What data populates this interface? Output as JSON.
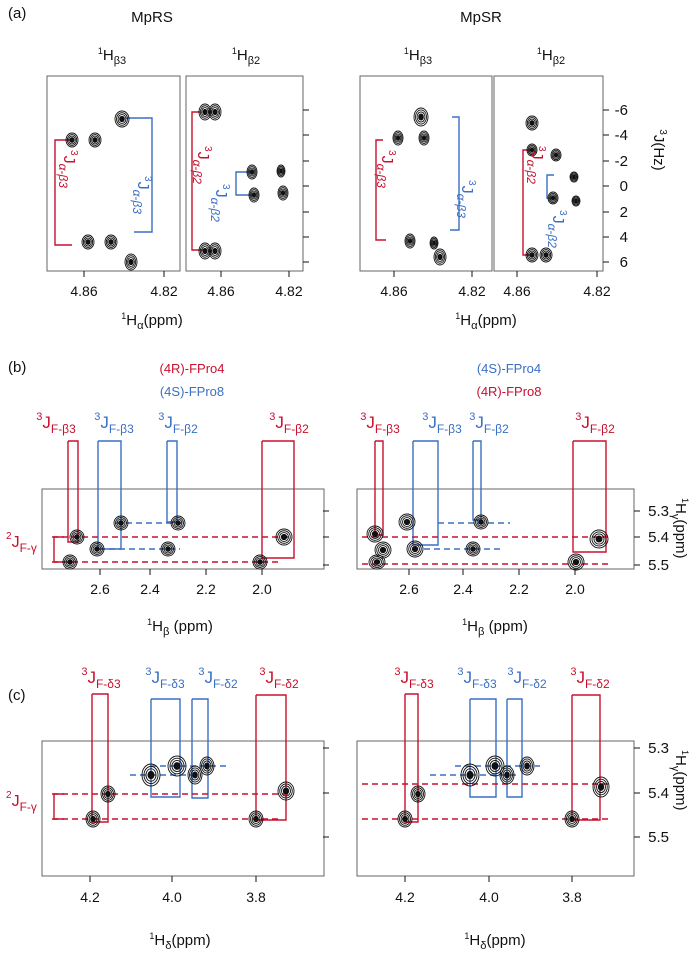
{
  "colors": {
    "red": "#c8102e",
    "blue": "#3a6fc4",
    "black": "#111111",
    "box": "#666666"
  },
  "panel_a": {
    "letter": "(a)",
    "title_rs": "MpRS",
    "title_sr": "MpSR",
    "col_b3": "β3",
    "col_b2": "β2",
    "h_sup": "1",
    "h_letter": "H",
    "x_ticks": [
      "4.86",
      "4.82"
    ],
    "x_label_sub": "α",
    "x_label_unit": "(ppm)",
    "y_ticks": [
      "-6",
      "-4",
      "-2",
      "0",
      "2",
      "4",
      "6"
    ],
    "y_label": "J(Hz)",
    "y_label_sup": "3",
    "j_sup": "3",
    "j_letter": "J",
    "j_ab3": "α-β3",
    "j_ab2": "α-β2"
  },
  "panel_b": {
    "letter": "(b)",
    "legend_rs_1": "(4R)-FPro4",
    "legend_rs_2": "(4S)-FPro8",
    "legend_sr_1": "(4S)-FPro4",
    "legend_sr_2": "(4R)-FPro8",
    "labels": [
      "F-β3",
      "F-β3",
      "F-β2",
      "F-β2"
    ],
    "gamma_label": "F-γ",
    "gamma_sup": "2",
    "x_ticks": [
      "2.6",
      "2.4",
      "2.2",
      "2.0"
    ],
    "x_label_sub": "β",
    "x_label_unit": " (ppm)",
    "y_ticks": [
      "5.3",
      "5.4",
      "5.5"
    ],
    "y_label_sub": "γ",
    "y_label_unit": "(ppm)"
  },
  "panel_c": {
    "letter": "(c)",
    "labels": [
      "F-δ3",
      "F-δ3",
      "F-δ2",
      "F-δ2"
    ],
    "x_ticks": [
      "4.2",
      "4.0",
      "3.8"
    ],
    "x_label_sub": "δ",
    "x_label_unit": "(ppm)",
    "y_ticks": [
      "5.3",
      "5.4",
      "5.5"
    ]
  }
}
